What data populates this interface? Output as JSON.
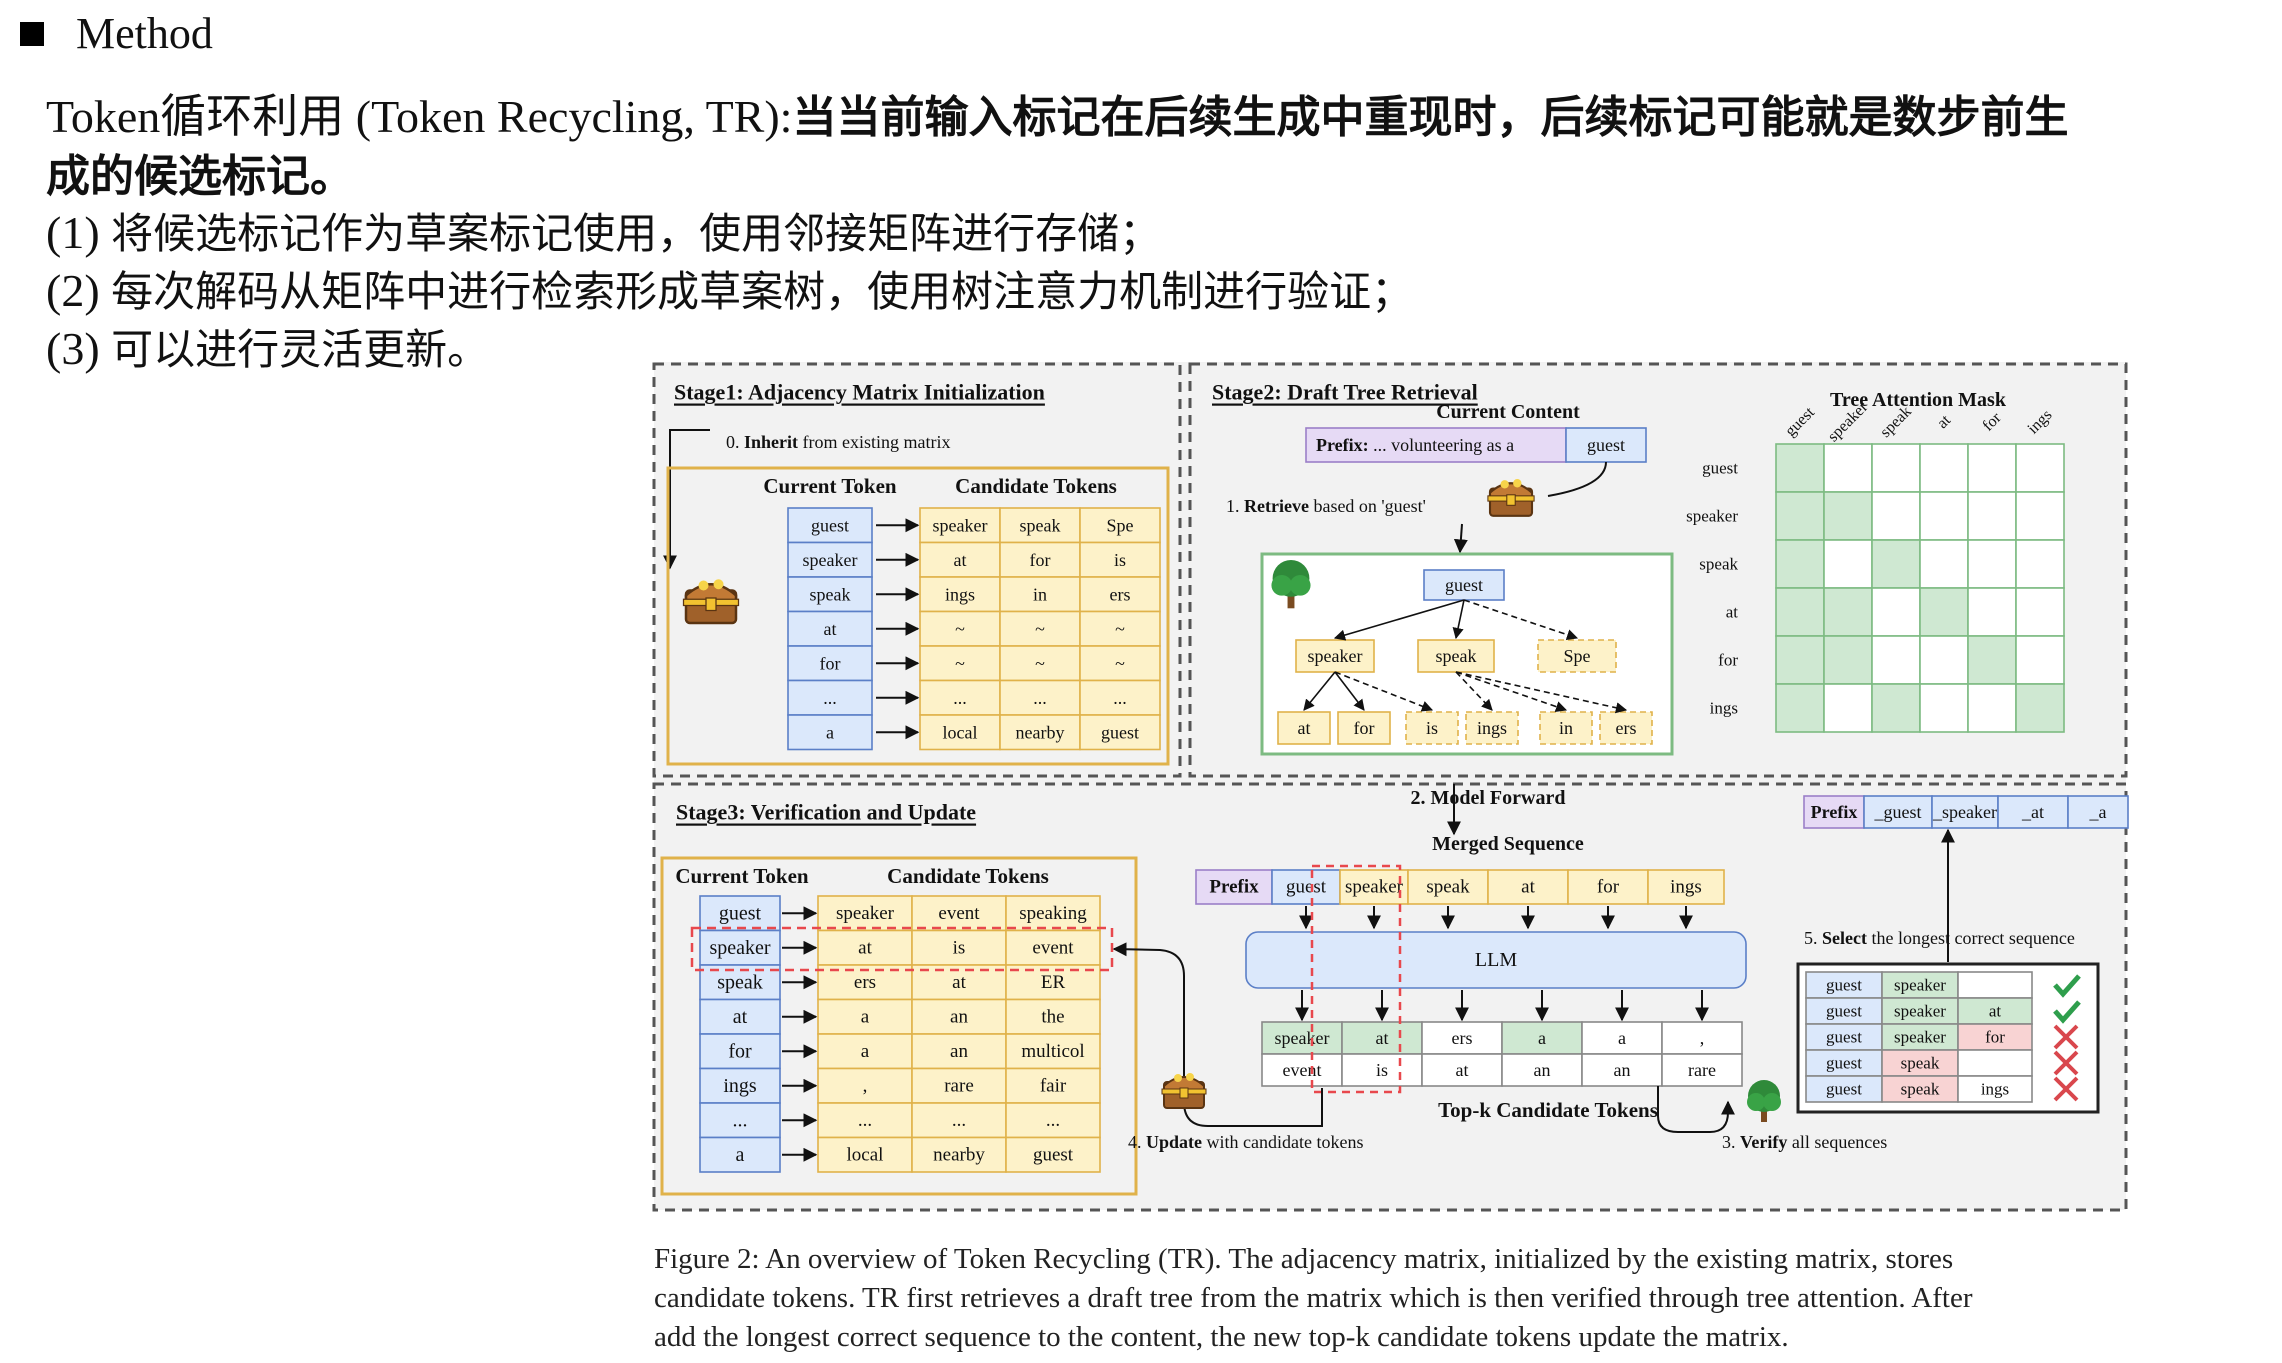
{
  "header": {
    "title": "Method"
  },
  "text": {
    "line1_a": "Token循环利用 (Token Recycling, TR):",
    "line1_b": "当当前输入标记在后续生成中重现时，后续标记可能就是数步前生",
    "line2": "成的候选标记。",
    "item1_num": "(1) ",
    "item1": "将候选标记作为草案标记使用，使用邻接矩阵进行存储；",
    "item2_num": "(2) ",
    "item2": "每次解码从矩阵中进行检索形成草案树，使用树注意力机制进行验证；",
    "item3_num": "(3) ",
    "item3": "可以进行灵活更新。"
  },
  "figure": {
    "stage1": {
      "title": "Stage1: Adjacency Matrix Initialization",
      "inherit_num": "0. ",
      "inherit_bold": "Inherit",
      "inherit_rest": " from existing matrix",
      "current_token": "Current Token",
      "candidate_tokens": "Candidate Tokens",
      "tokens": [
        "guest",
        "speaker",
        "speak",
        "at",
        "for",
        "...",
        "a"
      ],
      "candidates": [
        [
          "speaker",
          "speak",
          "Spe"
        ],
        [
          "at",
          "for",
          "is"
        ],
        [
          "ings",
          "in",
          "ers"
        ],
        [
          "~",
          "~",
          "~"
        ],
        [
          "~",
          "~",
          "~"
        ],
        [
          "...",
          "...",
          "..."
        ],
        [
          "local",
          "nearby",
          "guest"
        ]
      ]
    },
    "stage2": {
      "title": "Stage2: Draft Tree Retrieval",
      "current_content": "Current Content",
      "prefix_label": "Prefix:",
      "prefix_text": "... volunteering as a",
      "prefix_token": "guest",
      "retrieve_num": "1. ",
      "retrieve_bold": "Retrieve",
      "retrieve_rest": " based on 'guest'",
      "tree": {
        "root": "guest",
        "level1": [
          "speaker",
          "speak",
          "Spe"
        ],
        "level2": [
          "at",
          "for",
          "is",
          "ings",
          "in",
          "ers"
        ]
      },
      "mask_title": "Tree Attention Mask",
      "mask_labels": [
        "guest",
        "speaker",
        "speak",
        "at",
        "for",
        "ings"
      ],
      "mask": [
        [
          1,
          0,
          0,
          0,
          0,
          0
        ],
        [
          1,
          1,
          0,
          0,
          0,
          0
        ],
        [
          1,
          0,
          1,
          0,
          0,
          0
        ],
        [
          1,
          1,
          0,
          1,
          0,
          0
        ],
        [
          1,
          1,
          0,
          0,
          1,
          0
        ],
        [
          1,
          0,
          1,
          0,
          0,
          1
        ]
      ]
    },
    "stage3": {
      "title": "Stage3: Verification and Update",
      "current_token": "Current Token",
      "candidate_tokens": "Candidate Tokens",
      "tokens": [
        "guest",
        "speaker",
        "speak",
        "at",
        "for",
        "ings",
        "...",
        "a"
      ],
      "candidates": [
        [
          "speaker",
          "event",
          "speaking"
        ],
        [
          "at",
          "is",
          "event"
        ],
        [
          "ers",
          "at",
          "ER"
        ],
        [
          "a",
          "an",
          "the"
        ],
        [
          "a",
          "an",
          "multicol"
        ],
        [
          ",",
          "rare",
          "fair"
        ],
        [
          "...",
          "...",
          "..."
        ],
        [
          "local",
          "nearby",
          "guest"
        ]
      ],
      "model_forward": "2. Model Forward",
      "merged_sequence": "Merged Sequence",
      "merged": [
        "Prefix",
        "guest",
        "speaker",
        "speak",
        "at",
        "for",
        "ings"
      ],
      "llm": "LLM",
      "topk_row1": [
        "speaker",
        "at",
        "ers",
        "a",
        "a",
        ","
      ],
      "topk_row2": [
        "event",
        "is",
        "at",
        "an",
        "an",
        "rare"
      ],
      "topk_label": "Top-k Candidate Tokens",
      "update_num": "4. ",
      "update_bold": "Update",
      "update_rest": " with candidate tokens",
      "verify_num": "3. ",
      "verify_bold": "Verify",
      "verify_rest": " all sequences",
      "result": [
        "Prefix",
        "_guest",
        "_speaker",
        "_at",
        "_a"
      ],
      "select_num": "5. ",
      "select_bold": "Select",
      "select_rest": " the longest correct sequence",
      "sequences": [
        [
          "guest",
          "speaker",
          ""
        ],
        [
          "guest",
          "speaker",
          "at"
        ],
        [
          "guest",
          "speaker",
          "for"
        ],
        [
          "guest",
          "speak",
          ""
        ],
        [
          "guest",
          "speak",
          "ings"
        ]
      ],
      "marks": [
        "check",
        "check",
        "cross",
        "cross",
        "cross"
      ]
    },
    "colors": {
      "blue": "#dbe8fb",
      "blue_border": "#5b7fc7",
      "yellow": "#fdf2c9",
      "yellow_border": "#e0b24a",
      "green": "#cfe8d2",
      "green_border": "#7dbb82",
      "purple": "#e6daf5",
      "purple_border": "#9b7fc8",
      "red": "#f8d3d3",
      "red_dash": "#e8484d",
      "llm": "#dbe8fb",
      "check": "#2e9e4c",
      "cross": "#d9474d"
    }
  },
  "caption": {
    "line1": "Figure 2: An overview of Token Recycling (TR). The adjacency matrix, initialized by the existing matrix, stores",
    "line2": "candidate tokens. TR first retrieves a draft tree from the matrix which is then verified through tree attention. After",
    "line3": "add the longest correct sequence to the content, the new top-k candidate tokens update the matrix."
  }
}
